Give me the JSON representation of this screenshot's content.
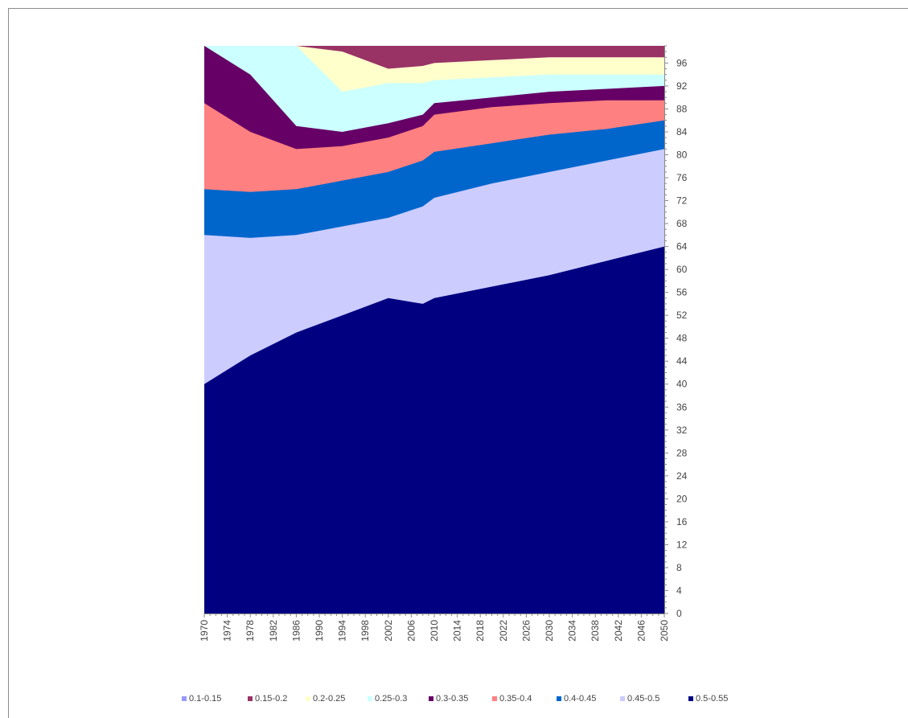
{
  "chart_data": {
    "type": "area",
    "title": "",
    "xlabel": "",
    "ylabel": "",
    "x": [
      1970,
      1978,
      1986,
      1994,
      2002,
      2008,
      2010,
      2020,
      2030,
      2040,
      2050
    ],
    "xlim": [
      1970,
      2050
    ],
    "ylim": [
      0,
      99
    ],
    "x_ticks": [
      "1970",
      "1974",
      "1978",
      "1982",
      "1986",
      "1990",
      "1994",
      "1998",
      "2002",
      "2006",
      "2010",
      "2014",
      "2018",
      "2022",
      "2026",
      "2030",
      "2034",
      "2038",
      "2042",
      "2046",
      "2050"
    ],
    "y_ticks": [
      0,
      4,
      8,
      12,
      16,
      20,
      24,
      28,
      32,
      36,
      40,
      44,
      48,
      52,
      56,
      60,
      64,
      68,
      72,
      76,
      80,
      84,
      88,
      92,
      96
    ],
    "y_axis_side": "right",
    "legend_position": "bottom",
    "series": [
      {
        "name": "0.5-0.55",
        "color": "#000080",
        "upper": [
          40,
          45,
          49,
          52,
          55,
          54,
          55,
          57,
          59,
          61.5,
          64
        ]
      },
      {
        "name": "0.45-0.5",
        "color": "#ccccff",
        "upper": [
          66,
          65.5,
          66,
          67.5,
          69,
          71,
          72.5,
          75,
          77,
          79,
          81
        ]
      },
      {
        "name": "0.4-0.45",
        "color": "#0066cc",
        "upper": [
          74,
          73.5,
          74,
          75.5,
          77,
          79,
          80.5,
          82,
          83.5,
          84.5,
          86
        ]
      },
      {
        "name": "0.35-0.4",
        "color": "#ff8080",
        "upper": [
          89,
          84,
          81,
          81.5,
          83,
          85,
          87,
          88.3,
          89,
          89.5,
          89.5
        ]
      },
      {
        "name": "0.3-0.35",
        "color": "#660066",
        "upper": [
          99,
          94,
          85,
          84,
          85.5,
          87,
          89,
          90,
          91,
          91.5,
          92
        ]
      },
      {
        "name": "0.25-0.3",
        "color": "#ccffff",
        "upper": [
          99,
          99,
          99,
          91,
          92.5,
          92.5,
          93,
          93.5,
          94,
          94,
          94
        ]
      },
      {
        "name": "0.2-0.25",
        "color": "#ffffcc",
        "upper": [
          99,
          99,
          99,
          98,
          95,
          95.5,
          96,
          96.5,
          97,
          97,
          97
        ]
      },
      {
        "name": "0.15-0.2",
        "color": "#993366",
        "upper": [
          99,
          99,
          99,
          99,
          99,
          99,
          99,
          99,
          99,
          99,
          99
        ]
      },
      {
        "name": "0.1-0.15",
        "color": "#9999ff",
        "upper": []
      }
    ]
  }
}
